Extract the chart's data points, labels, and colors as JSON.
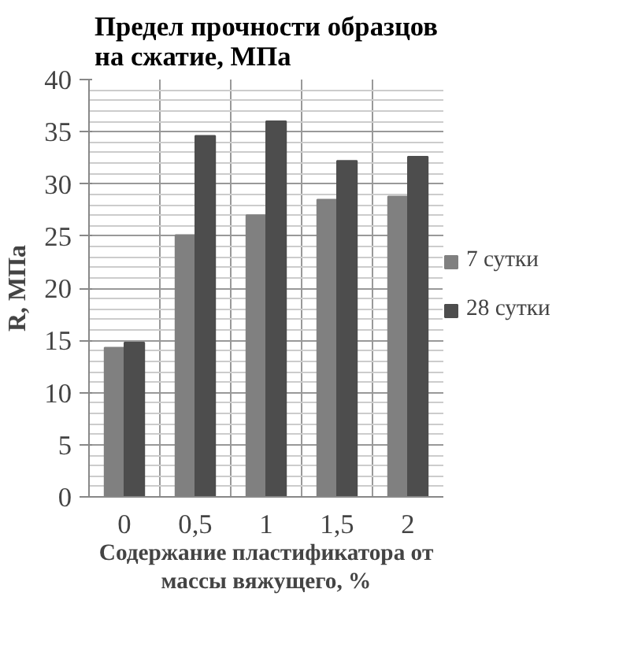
{
  "chart_data": {
    "type": "bar",
    "title": "Предел прочности образцов на сжатие, МПа",
    "xlabel": "Содержание пластификатора от массы вяжущего, %",
    "ylabel": "R, МПа",
    "categories": [
      "0",
      "0,5",
      "1",
      "1,5",
      "2"
    ],
    "series": [
      {
        "name": "7 сутки",
        "color": "#808080",
        "values": [
          14.3,
          25.1,
          27.0,
          28.5,
          28.8
        ]
      },
      {
        "name": "28 сутки",
        "color": "#4d4d4d",
        "values": [
          14.8,
          34.6,
          36.0,
          32.2,
          32.6
        ]
      }
    ],
    "ylim": [
      0,
      40
    ],
    "yticks": [
      0,
      5,
      10,
      15,
      20,
      25,
      30,
      35,
      40
    ],
    "grid": true,
    "legend": "right"
  }
}
